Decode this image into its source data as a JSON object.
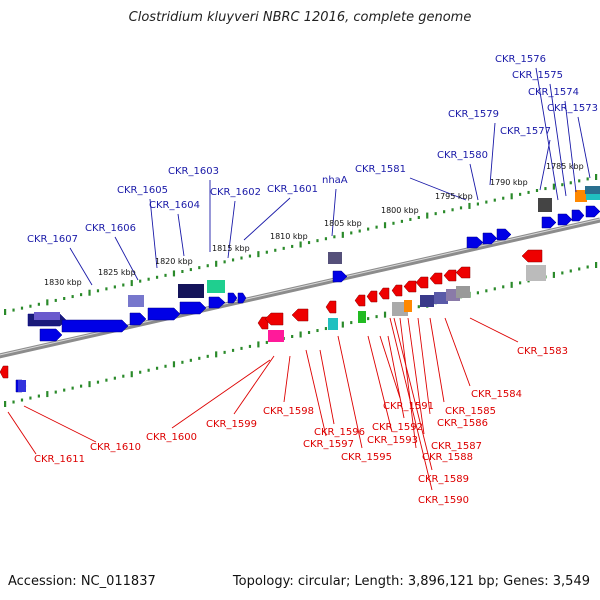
{
  "title": "Clostridium kluyveri NBRC 12016, complete genome",
  "footer": {
    "accession": "Accession: NC_011837",
    "topology": "Topology: circular; Length: 3,896,121 bp; Genes: 3,549"
  },
  "colors": {
    "top_label": "#1a1aa8",
    "bottom_label": "#dd0000",
    "forward_gene": "#0000e6",
    "reverse_gene": "#ee0000",
    "tick": "#2a8a2a",
    "backbone": "#888888"
  },
  "scale_labels": [
    "1830 kbp",
    "1825 kbp",
    "1820 kbp",
    "1815 kbp",
    "1810 kbp",
    "1805 kbp",
    "1800 kbp",
    "1795 kbp",
    "1790 kbp",
    "1785 kbp"
  ],
  "top_labels": [
    "CKR_1576",
    "CKR_1575",
    "CKR_1574",
    "CKR_1573",
    "CKR_1579",
    "CKR_1577",
    "CKR_1580",
    "CKR_1581",
    "nhaA",
    "CKR_1603",
    "CKR_1605",
    "CKR_1604",
    "CKR_1602",
    "CKR_1601",
    "CKR_1606",
    "CKR_1607"
  ],
  "bottom_labels": [
    "CKR_1583",
    "CKR_1584",
    "CKR_1585",
    "CKR_1586",
    "CKR_1587",
    "CKR_1588",
    "CKR_1589",
    "CKR_1590",
    "CKR_1591",
    "CKR_1592",
    "CKR_1593",
    "CKR_1595",
    "CKR_1596",
    "CKR_1597",
    "CKR_1598",
    "CKR_1599",
    "CKR_1600",
    "CKR_1610",
    "CKR_1611"
  ]
}
